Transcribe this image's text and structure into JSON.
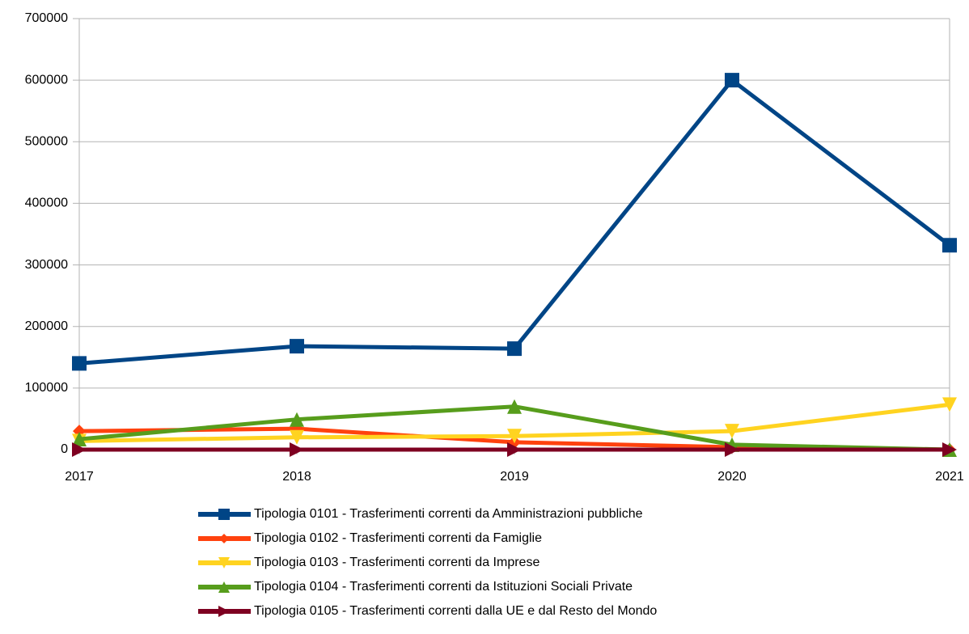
{
  "chart_data": {
    "type": "line",
    "x": [
      2017,
      2018,
      2019,
      2020,
      2021
    ],
    "xlim": [
      2017,
      2021
    ],
    "xticks": [
      2017,
      2018,
      2019,
      2020,
      2021
    ],
    "ylim": [
      0,
      700000
    ],
    "yticks": [
      0,
      100000,
      200000,
      300000,
      400000,
      500000,
      600000,
      700000
    ],
    "grid": true,
    "legend": "bottom",
    "series": [
      {
        "name": "Tipologia 0101 - Trasferimenti correnti da Amministrazioni pubbliche",
        "color": "#004586",
        "marker": "square",
        "values": [
          140000,
          168000,
          164000,
          600000,
          332000
        ]
      },
      {
        "name": "Tipologia 0102 - Trasferimenti correnti da Famiglie",
        "color": "#ff420e",
        "marker": "diamond",
        "values": [
          30000,
          34000,
          12000,
          4000,
          0
        ]
      },
      {
        "name": "Tipologia 0103 - Trasferimenti correnti da Imprese",
        "color": "#ffd320",
        "marker": "triangle-down",
        "values": [
          14000,
          20000,
          22000,
          30000,
          73000
        ]
      },
      {
        "name": "Tipologia 0104 - Trasferimenti correnti da Istituzioni Sociali Private",
        "color": "#579d1c",
        "marker": "triangle-up",
        "values": [
          17000,
          49000,
          70000,
          8000,
          0
        ]
      },
      {
        "name": "Tipologia 0105 - Trasferimenti correnti dalla UE e dal Resto del Mondo",
        "color": "#7e0021",
        "marker": "triangle-right",
        "values": [
          0,
          0,
          0,
          0,
          0
        ]
      }
    ]
  }
}
